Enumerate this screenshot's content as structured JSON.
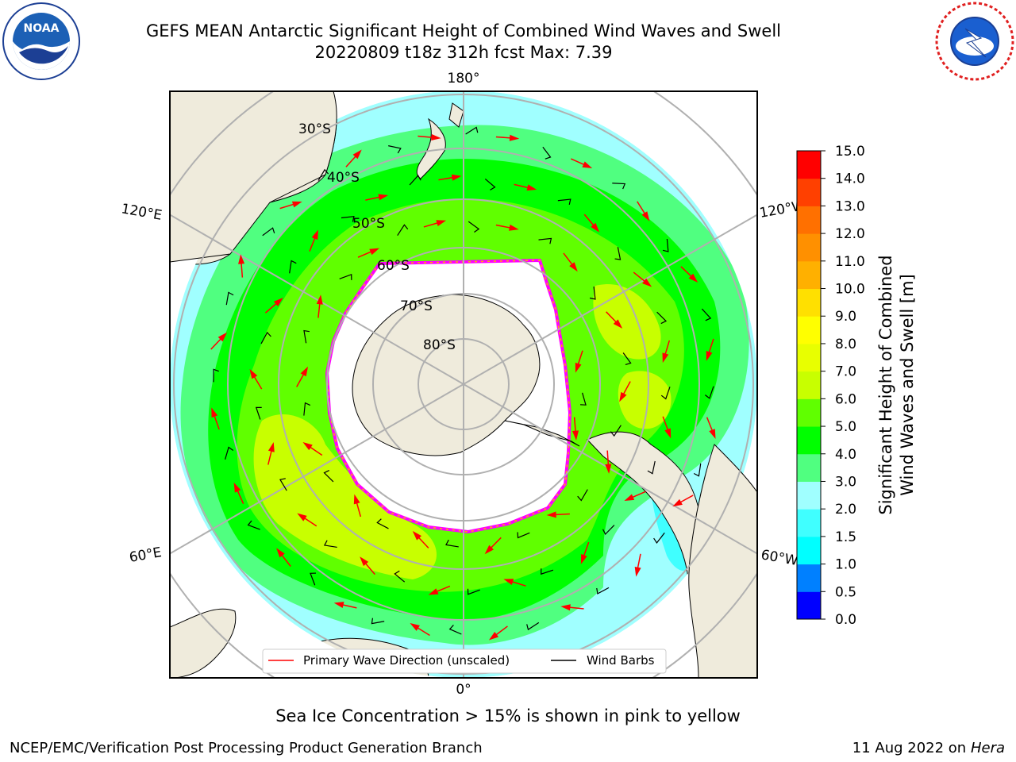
{
  "title_line1": "GEFS MEAN Antarctic Significant Height of Combined Wind Waves and Swell",
  "title_line2": "20220809 t18z 312h fcst   Max: 7.39",
  "logos": {
    "left": "noaa-logo",
    "right": "national-weather-service-logo",
    "left_text": "NOAA",
    "right_text": "NATIONAL WEATHER SERVICE"
  },
  "map": {
    "projection": "south-polar-stereographic",
    "longitude_labels": {
      "top": "180°",
      "bottom": "0°",
      "upper_left": "120°E",
      "upper_right": "120°W",
      "lower_left": "60°E",
      "lower_right": "60°W"
    },
    "latitude_labels": [
      "30°S",
      "40°S",
      "50°S",
      "60°S",
      "70°S",
      "80°S"
    ],
    "legend": {
      "primary_wave": "Primary Wave Direction (unscaled)",
      "wind_barbs": "Wind Barbs"
    },
    "colors": {
      "land": "#efebdc",
      "ice": "#ffffff",
      "ice_edge": "#ff00ff",
      "gridline": "#b0b0b0",
      "wave_arrow": "#ff0000",
      "barb": "#000000"
    }
  },
  "colorbar": {
    "label_line1": "Significant Height of Combined",
    "label_line2": "Wind Waves and Swell [m]",
    "ticks": [
      "0.0",
      "0.5",
      "1.0",
      "1.5",
      "2.0",
      "3.0",
      "4.0",
      "5.0",
      "6.0",
      "7.0",
      "8.0",
      "9.0",
      "10.0",
      "11.0",
      "12.0",
      "13.0",
      "14.0",
      "15.0"
    ],
    "colors": [
      "#0000ff",
      "#0080ff",
      "#00ffff",
      "#40ffff",
      "#a0ffff",
      "#50ff80",
      "#00ff00",
      "#60ff00",
      "#c8ff00",
      "#e8ff00",
      "#ffff00",
      "#ffe000",
      "#ffb000",
      "#ff9000",
      "#ff7000",
      "#ff4000",
      "#ff0000"
    ]
  },
  "note": "Sea Ice Concentration > 15% is shown in pink to yellow",
  "footer_left": "NCEP/EMC/Verification Post Processing Product Generation Branch",
  "footer_right_date": "11 Aug 2022 on",
  "footer_right_host": "Hera"
}
